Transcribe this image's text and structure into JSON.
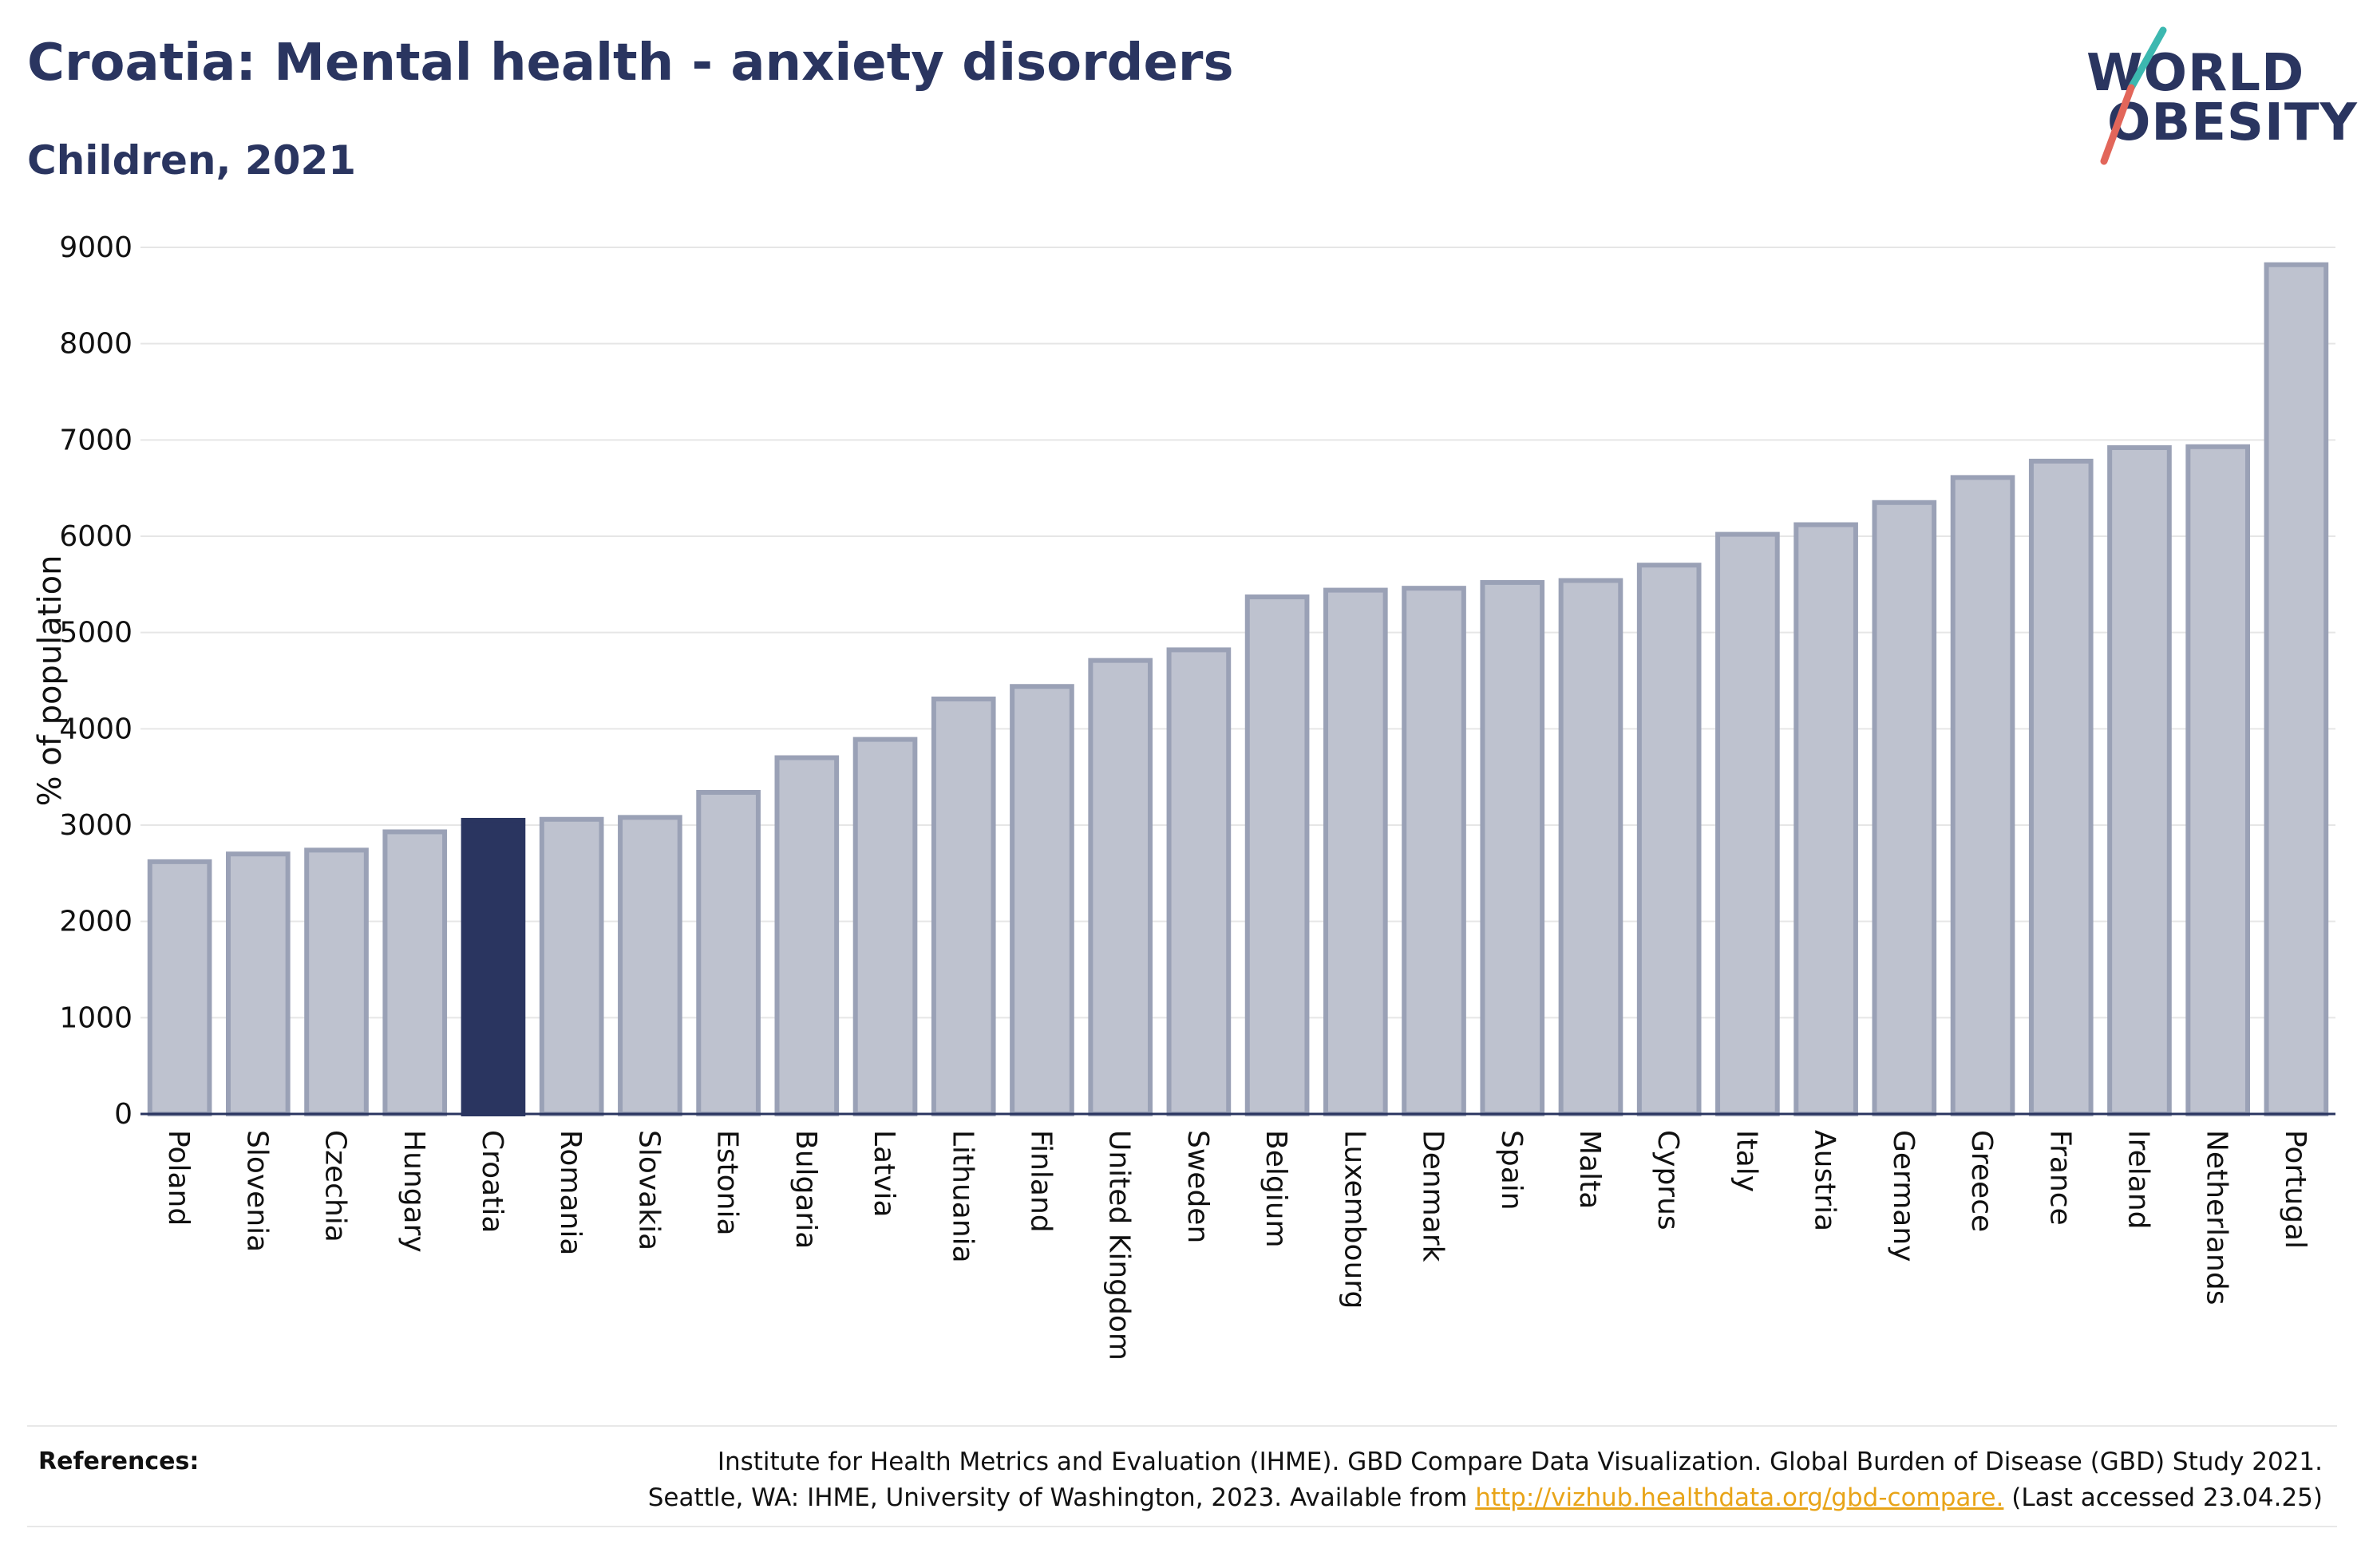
{
  "title": "Croatia: Mental health - anxiety disorders",
  "subtitle": "Children, 2021",
  "logo": {
    "line1": "WORLD",
    "line2": "OBESITY"
  },
  "colors": {
    "highlight": "#2a3560",
    "bar_fill": "#bec2cf",
    "bar_stroke": "#9aa1b6",
    "grid": "#e6e6e6",
    "link": "#e8a418",
    "logo_slash_teal": "#3cb8b0",
    "logo_slash_red": "#e2665a"
  },
  "references": {
    "label": "References:",
    "line1": "Institute for Health Metrics and Evaluation (IHME). GBD Compare Data Visualization. Global Burden of Disease (GBD) Study 2021.",
    "line2_prefix": "Seattle, WA: IHME, University of Washington, 2023. Available from ",
    "link_text": "http://vizhub.healthdata.org/gbd-compare.",
    "line2_suffix": " (Last accessed 23.04.25)"
  },
  "chart_data": {
    "type": "bar",
    "title": "Croatia: Mental health - anxiety disorders",
    "subtitle": "Children, 2021",
    "xlabel": "",
    "ylabel": "% of population",
    "ylim": [
      0,
      9000
    ],
    "yticks": [
      0,
      1000,
      2000,
      3000,
      4000,
      5000,
      6000,
      7000,
      8000,
      9000
    ],
    "grid": true,
    "highlight": "Croatia",
    "categories": [
      "Poland",
      "Slovenia",
      "Czechia",
      "Hungary",
      "Croatia",
      "Romania",
      "Slovakia",
      "Estonia",
      "Bulgaria",
      "Latvia",
      "Lithuania",
      "Finland",
      "United Kingdom",
      "Sweden",
      "Belgium",
      "Luxembourg",
      "Denmark",
      "Spain",
      "Malta",
      "Cyprus",
      "Italy",
      "Austria",
      "Germany",
      "Greece",
      "France",
      "Ireland",
      "Netherlands",
      "Portugal"
    ],
    "values": [
      2620,
      2700,
      2740,
      2930,
      3050,
      3060,
      3080,
      3340,
      3700,
      3890,
      4310,
      4440,
      4710,
      4820,
      5370,
      5440,
      5460,
      5520,
      5540,
      5700,
      6020,
      6120,
      6350,
      6610,
      6780,
      6920,
      6930,
      8820
    ]
  }
}
